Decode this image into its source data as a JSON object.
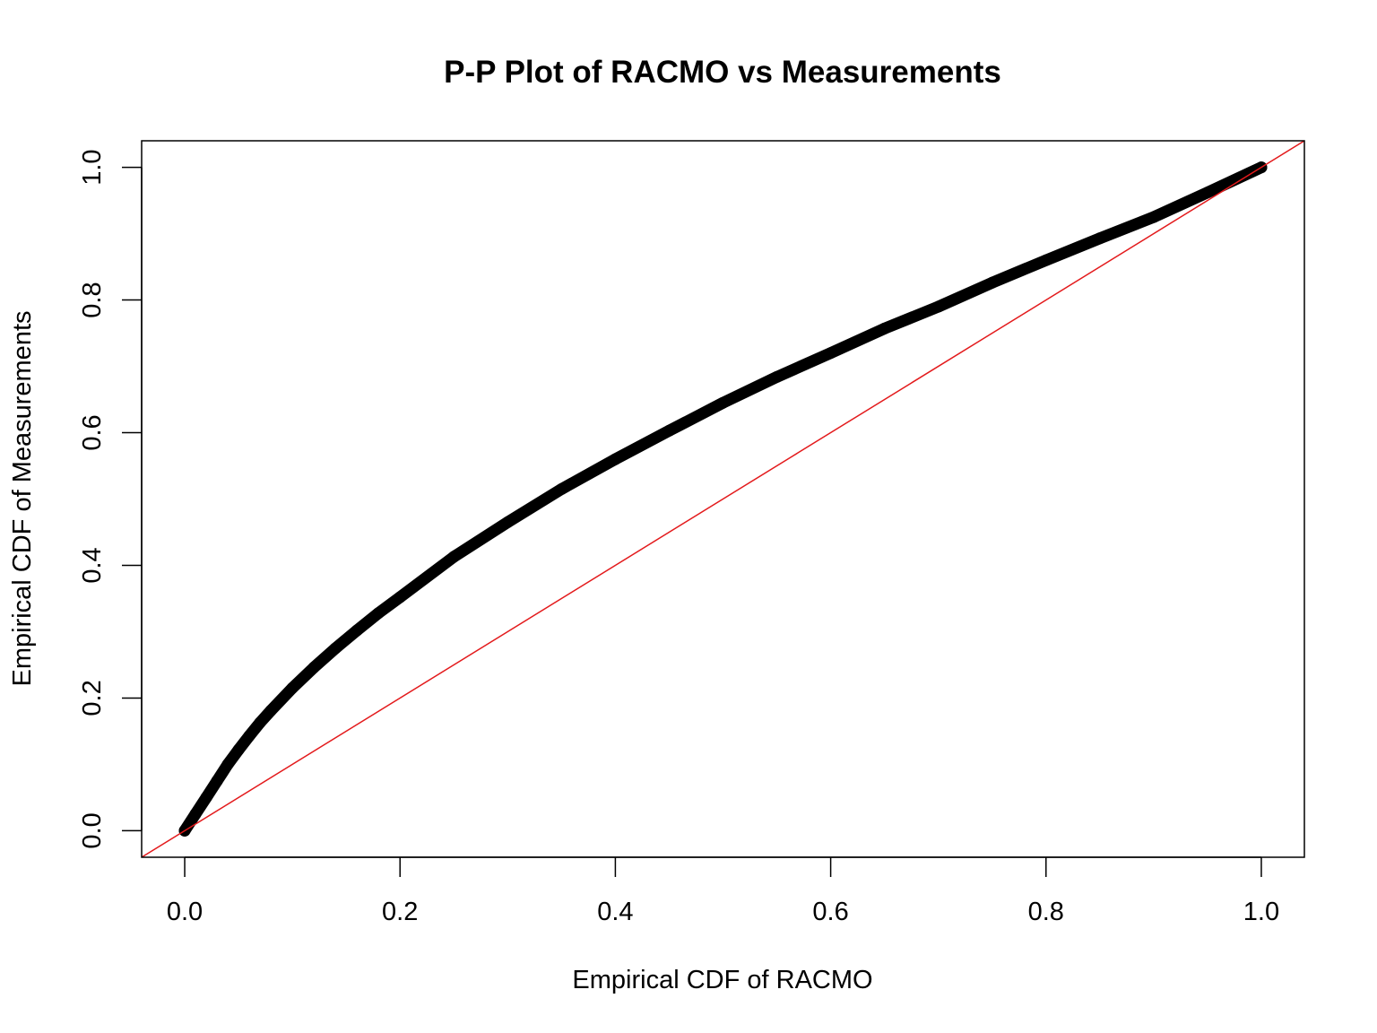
{
  "chart_data": {
    "type": "scatter",
    "title": "P-P Plot of RACMO vs Measurements",
    "xlabel": "Empirical CDF of RACMO",
    "ylabel": "Empirical CDF of Measurements",
    "xlim": [
      -0.04,
      1.04
    ],
    "ylim": [
      -0.04,
      1.04
    ],
    "xticks": [
      "0.0",
      "0.2",
      "0.4",
      "0.6",
      "0.8",
      "1.0"
    ],
    "yticks": [
      "0.0",
      "0.2",
      "0.4",
      "0.6",
      "0.8",
      "1.0"
    ],
    "grid": false,
    "legend": "none",
    "series": [
      {
        "color": "#000000",
        "points": [
          [
            0.0,
            0.0
          ],
          [
            0.01,
            0.025
          ],
          [
            0.02,
            0.05
          ],
          [
            0.03,
            0.075
          ],
          [
            0.04,
            0.1
          ],
          [
            0.05,
            0.122
          ],
          [
            0.06,
            0.143
          ],
          [
            0.07,
            0.163
          ],
          [
            0.08,
            0.181
          ],
          [
            0.1,
            0.215
          ],
          [
            0.12,
            0.246
          ],
          [
            0.14,
            0.275
          ],
          [
            0.16,
            0.302
          ],
          [
            0.18,
            0.328
          ],
          [
            0.2,
            0.352
          ],
          [
            0.25,
            0.413
          ],
          [
            0.3,
            0.465
          ],
          [
            0.35,
            0.515
          ],
          [
            0.4,
            0.56
          ],
          [
            0.45,
            0.603
          ],
          [
            0.5,
            0.645
          ],
          [
            0.55,
            0.684
          ],
          [
            0.6,
            0.72
          ],
          [
            0.65,
            0.757
          ],
          [
            0.7,
            0.79
          ],
          [
            0.75,
            0.826
          ],
          [
            0.8,
            0.86
          ],
          [
            0.85,
            0.893
          ],
          [
            0.9,
            0.925
          ],
          [
            0.95,
            0.962
          ],
          [
            1.0,
            1.0
          ]
        ]
      }
    ],
    "reference_line": {
      "intercept": 0,
      "slope": 1,
      "color": "#e31a1c"
    }
  }
}
